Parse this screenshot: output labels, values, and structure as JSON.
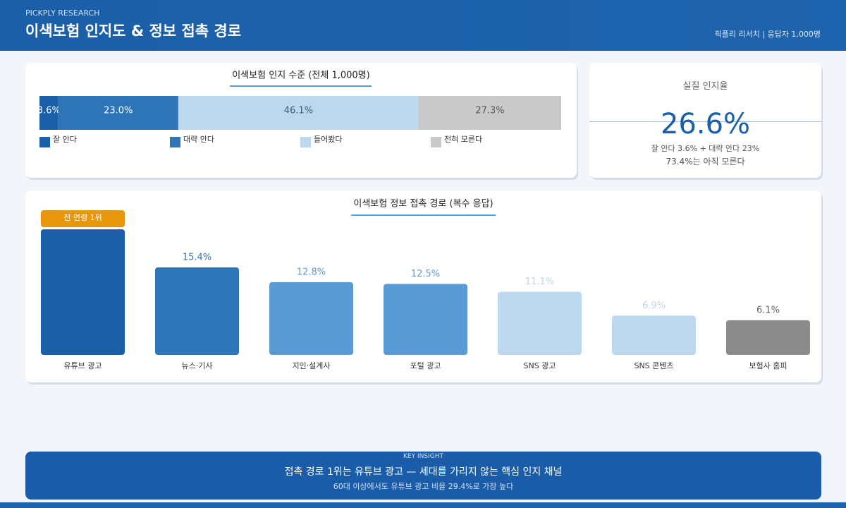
{
  "header": {
    "eyebrow": "PICKPLY RESEARCH",
    "title": "이색보험 인지도 & 정보 접촉 경로",
    "meta": "픽플리 리서치 | 응답자 1,000명"
  },
  "chart_data": [
    {
      "type": "stacked-bar",
      "title": "이색보험 인지 수준 (전체 1,000명)",
      "series": [
        {
          "name": "잘 안다",
          "color": "#1a5fa8",
          "label_color": "#ffffff",
          "values": [
            3.6
          ],
          "value_labels": [
            "3.6%"
          ]
        },
        {
          "name": "대략 안다",
          "color": "#2e75b8",
          "label_color": "#ffffff",
          "values": [
            23.0
          ],
          "value_labels": [
            "23.0%"
          ]
        },
        {
          "name": "들어봤다",
          "color": "#bdd7ee",
          "label_color": "#3d5a7a",
          "values": [
            46.1
          ],
          "value_labels": [
            "46.1%"
          ]
        },
        {
          "name": "전혀 모른다",
          "color": "#c9c9c9",
          "label_color": "#555555",
          "values": [
            27.3
          ],
          "value_labels": [
            "27.3%"
          ]
        }
      ]
    },
    {
      "type": "bar",
      "title": "이색보험 정보 접촉 경로 (복수 응답)",
      "categories": [
        "유튜브 광고",
        "뉴스·기사",
        "지인·설계사",
        "포털 광고",
        "SNS 광고",
        "SNS 콘텐츠",
        "보험사 홈피"
      ],
      "values": [
        22.1,
        15.4,
        12.8,
        12.5,
        11.1,
        6.9,
        6.1
      ],
      "value_labels": [
        null,
        "15.4%",
        "12.8%",
        "12.5%",
        "11.1%",
        "6.9%",
        "6.1%"
      ],
      "colors": [
        "#1a5fa8",
        "#2e75b8",
        "#5b9bd5",
        "#5b9bd5",
        "#bdd7ee",
        "#bdd7ee",
        "#8c8c8c"
      ],
      "label_colors": [
        "#1a5fa8",
        "#2e75b8",
        "#5b9bd5",
        "#5b9bd5",
        "#bdd7ee",
        "#bdd7ee",
        "#666666"
      ],
      "annotation": "전 연령 1위",
      "annotation_color": "#e8960c"
    }
  ],
  "stat": {
    "label": "실질 인지율",
    "value": "26.6%",
    "detail": "잘 안다 3.6% + 대략 안다 23%",
    "note": "73.4%는 아직 모른다"
  },
  "insight": {
    "kicker": "KEY INSIGHT",
    "headline": "접촉 경로 1위는 유튜브 광고 — 세대를 가리지 않는 핵심 인지 채널",
    "sub": "60대 이상에서도 유튜브 광고 비율 29.4%로 가장 높다"
  }
}
